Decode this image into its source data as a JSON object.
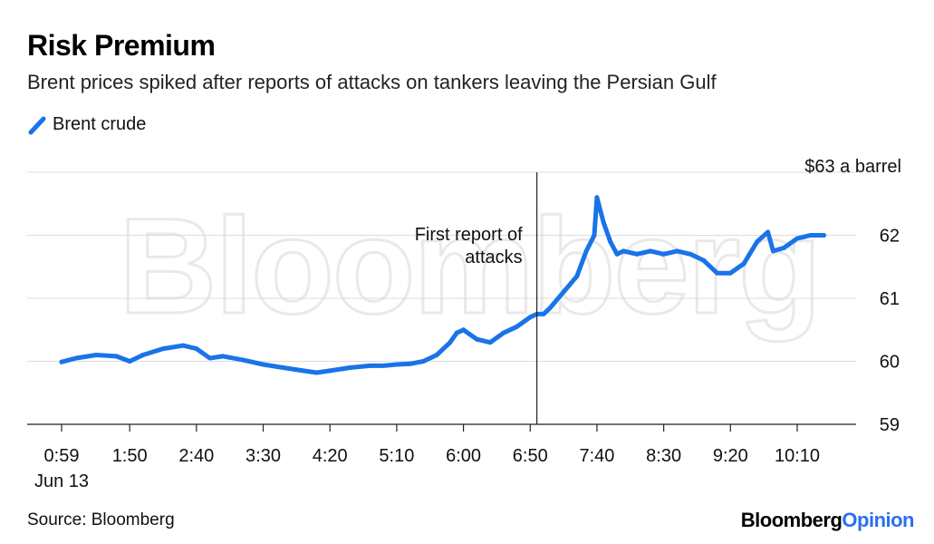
{
  "header": {
    "title": "Risk Premium",
    "subtitle": "Brent prices spiked after reports of attacks on tankers leaving the Persian Gulf"
  },
  "legend": {
    "label": "Brent crude",
    "color": "#1a73e8"
  },
  "footer": {
    "source": "Source: Bloomberg",
    "brand_part1": "Bloomberg",
    "brand_part2": "Opinion"
  },
  "watermark": "Bloomberg",
  "chart_data": {
    "type": "line",
    "title": "Risk Premium",
    "subtitle": "Brent prices spiked after reports of attacks on tankers leaving the Persian Gulf",
    "ylabel": "",
    "xlabel": "",
    "ylim": [
      59,
      63
    ],
    "xlim": [
      "00:59",
      "10:30"
    ],
    "y_ticks": [
      {
        "value": 63,
        "label": "$63 a barrel"
      },
      {
        "value": 62,
        "label": "62"
      },
      {
        "value": 61,
        "label": "61"
      },
      {
        "value": 60,
        "label": "60"
      },
      {
        "value": 59,
        "label": "59"
      }
    ],
    "x_ticks": [
      {
        "value": "00:59",
        "label": "0:59",
        "sublabel": "Jun 13"
      },
      {
        "value": "01:50",
        "label": "1:50"
      },
      {
        "value": "02:40",
        "label": "2:40"
      },
      {
        "value": "03:30",
        "label": "3:30"
      },
      {
        "value": "04:20",
        "label": "4:20"
      },
      {
        "value": "05:10",
        "label": "5:10"
      },
      {
        "value": "06:00",
        "label": "6:00"
      },
      {
        "value": "06:50",
        "label": "6:50"
      },
      {
        "value": "07:40",
        "label": "7:40"
      },
      {
        "value": "08:30",
        "label": "8:30"
      },
      {
        "value": "09:20",
        "label": "9:20"
      },
      {
        "value": "10:10",
        "label": "10:10"
      }
    ],
    "grid": true,
    "legend_position": "top-left",
    "annotations": [
      {
        "x": "06:55",
        "lines": [
          "First report of",
          "attacks"
        ]
      }
    ],
    "series": [
      {
        "name": "Brent crude",
        "color": "#1a73e8",
        "x": [
          "00:59",
          "01:10",
          "01:25",
          "01:40",
          "01:50",
          "02:00",
          "02:15",
          "02:30",
          "02:40",
          "02:50",
          "03:00",
          "03:15",
          "03:30",
          "03:45",
          "04:00",
          "04:10",
          "04:20",
          "04:35",
          "04:50",
          "05:00",
          "05:10",
          "05:20",
          "05:30",
          "05:40",
          "05:50",
          "05:55",
          "06:00",
          "06:10",
          "06:20",
          "06:30",
          "06:40",
          "06:50",
          "06:55",
          "07:00",
          "07:05",
          "07:15",
          "07:25",
          "07:32",
          "07:38",
          "07:40",
          "07:45",
          "07:50",
          "07:55",
          "08:00",
          "08:10",
          "08:20",
          "08:30",
          "08:40",
          "08:50",
          "09:00",
          "09:10",
          "09:20",
          "09:30",
          "09:40",
          "09:48",
          "09:52",
          "10:00",
          "10:10",
          "10:20",
          "10:30"
        ],
        "values": [
          59.99,
          60.05,
          60.1,
          60.08,
          60.0,
          60.1,
          60.2,
          60.25,
          60.2,
          60.05,
          60.08,
          60.02,
          59.95,
          59.9,
          59.85,
          59.82,
          59.85,
          59.9,
          59.93,
          59.93,
          59.95,
          59.96,
          60.0,
          60.1,
          60.3,
          60.45,
          60.5,
          60.35,
          60.3,
          60.45,
          60.55,
          60.7,
          60.75,
          60.75,
          60.85,
          61.1,
          61.35,
          61.75,
          62.0,
          62.6,
          62.2,
          61.9,
          61.7,
          61.75,
          61.7,
          61.75,
          61.7,
          61.75,
          61.7,
          61.6,
          61.4,
          61.4,
          61.55,
          61.9,
          62.05,
          61.75,
          61.8,
          61.95,
          62.0,
          62.0
        ]
      }
    ]
  }
}
